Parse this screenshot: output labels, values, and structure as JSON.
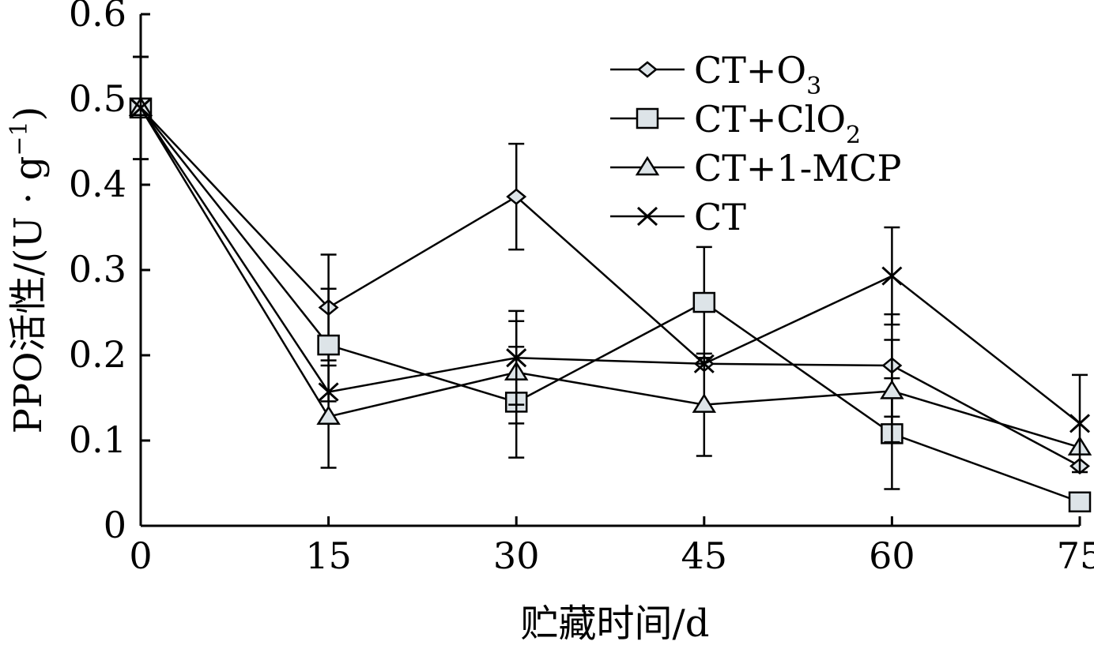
{
  "chart_data": {
    "type": "line",
    "x": [
      0,
      15,
      30,
      45,
      60,
      75
    ],
    "xticks": [
      "0",
      "15",
      "30",
      "45",
      "60",
      "75"
    ],
    "yticks": [
      "0",
      "0.1",
      "0.2",
      "0.3",
      "0.4",
      "0.5",
      "0.6"
    ],
    "xlim": [
      0,
      75
    ],
    "ylim": [
      0,
      0.6
    ],
    "xlabel": "贮藏时间/d",
    "ylabel": "PPO活性/(U · g",
    "ylabel_sup": "−1",
    "ylabel_close": ")",
    "grid": false,
    "legend_position": "top-right",
    "series": [
      {
        "name": "CT+O",
        "name_sub": "3",
        "marker": "diamond",
        "values": [
          0.49,
          0.256,
          0.386,
          0.19,
          0.188,
          0.07
        ],
        "error": [
          0.06,
          0.062,
          0.062,
          0.0,
          0.06,
          0.0
        ]
      },
      {
        "name": "CT+ClO",
        "name_sub": "2",
        "marker": "square",
        "values": [
          0.49,
          0.212,
          0.145,
          0.262,
          0.108,
          0.028
        ],
        "error": [
          0.06,
          0.066,
          0.065,
          0.065,
          0.065,
          0.0
        ]
      },
      {
        "name": "CT+1-MCP",
        "name_sub": "",
        "marker": "triangle",
        "values": [
          0.49,
          0.128,
          0.18,
          0.142,
          0.158,
          0.092
        ],
        "error": [
          0.06,
          0.06,
          0.06,
          0.06,
          0.06,
          0.0
        ]
      },
      {
        "name": "CT",
        "name_sub": "",
        "marker": "x",
        "values": [
          0.49,
          0.157,
          0.197,
          0.19,
          0.293,
          0.12
        ],
        "error": [
          0.06,
          0.0,
          0.055,
          0.0,
          0.057,
          0.057
        ]
      }
    ]
  }
}
